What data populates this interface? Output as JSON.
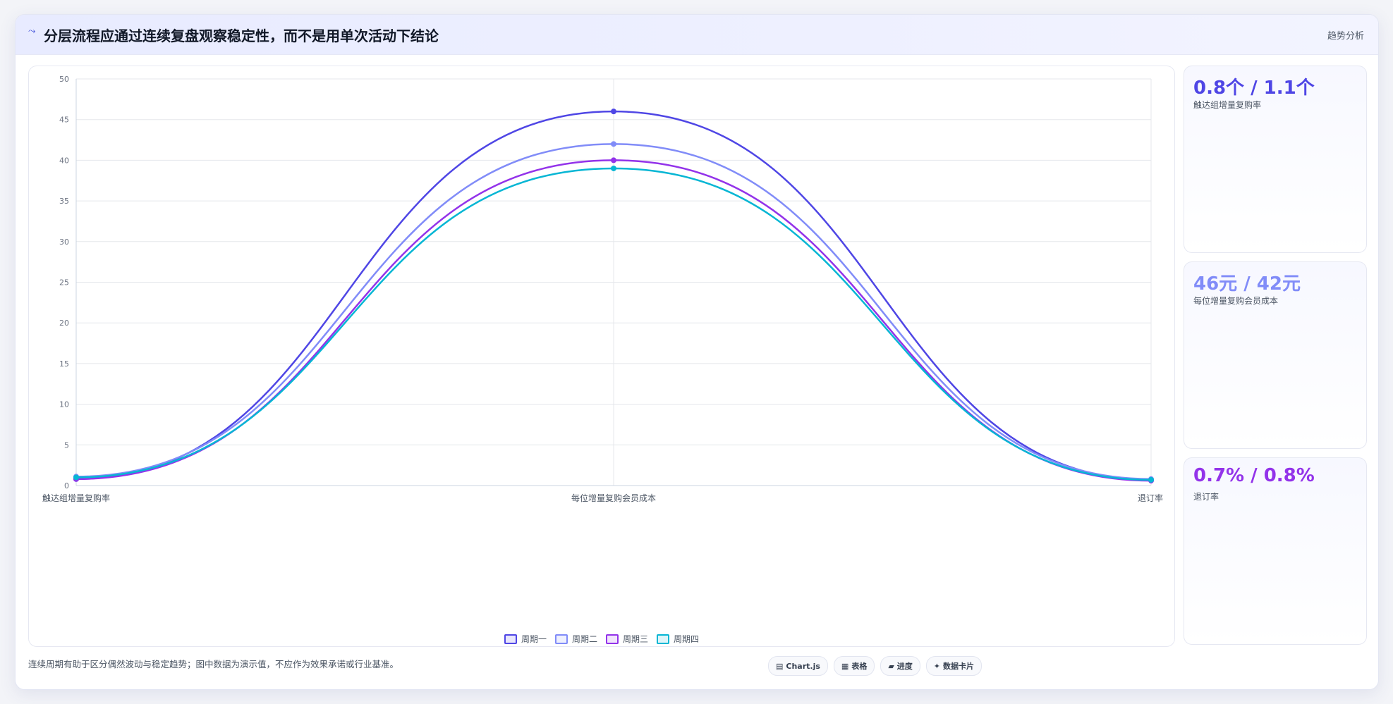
{
  "header": {
    "icon": "chart-line-icon",
    "icon_glyph": "⤳",
    "title": "分层流程应通过连续复盘观察稳定性，而不是用单次活动下结论",
    "link": "趋势分析"
  },
  "kpis": [
    {
      "value": "0.8个 / 1.1个",
      "label": "触达组增量复购率",
      "color": "#4f46e5"
    },
    {
      "value": "46元 / 42元",
      "label": "每位增量复购会员成本",
      "color": "#818cf8"
    },
    {
      "value": "0.7% / 0.8%",
      "label": "退订率",
      "color": "#9333ea"
    }
  ],
  "footnote": "连续周期有助于区分偶然波动与稳定趋势；图中数据为演示值，不应作为效果承诺或行业基准。",
  "pills": [
    {
      "icon": "chart-icon",
      "glyph": "▤",
      "label": "Chart.js"
    },
    {
      "icon": "table-icon",
      "glyph": "▦",
      "label": "表格"
    },
    {
      "icon": "progress-icon",
      "glyph": "▰",
      "label": "进度"
    },
    {
      "icon": "sparkle-icon",
      "glyph": "✦",
      "label": "数据卡片"
    }
  ],
  "chart_data": {
    "type": "line",
    "categories": [
      "触达组增量复购率",
      "每位增量复购会员成本",
      "退订率"
    ],
    "series": [
      {
        "name": "周期一",
        "values": [
          0.8,
          46,
          0.7
        ],
        "color": "#4f46e5"
      },
      {
        "name": "周期二",
        "values": [
          1.1,
          42,
          0.8
        ],
        "color": "#818cf8"
      },
      {
        "name": "周期三",
        "values": [
          0.8,
          40,
          0.6
        ],
        "color": "#9333ea"
      },
      {
        "name": "周期四",
        "values": [
          1.0,
          39,
          0.7
        ],
        "color": "#06b6d4"
      }
    ],
    "ylim": [
      0,
      50
    ],
    "yticks": [
      0,
      5,
      10,
      15,
      20,
      25,
      30,
      35,
      40,
      45,
      50
    ],
    "grid": true,
    "legend": "bottom"
  }
}
